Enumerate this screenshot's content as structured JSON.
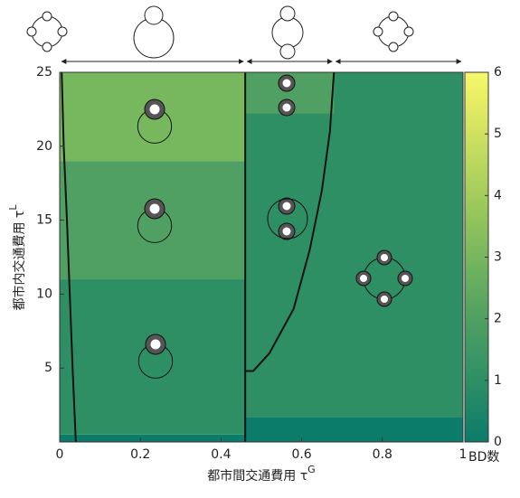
{
  "chart_data": {
    "type": "heatmap",
    "xlabel": "都市間交通費用 τ",
    "xlabel_sup": "G",
    "ylabel": "都市内交通費用 τ",
    "ylabel_sup": "L",
    "colorbar_label": "BD数",
    "xlim": [
      0,
      1
    ],
    "ylim": [
      0,
      25
    ],
    "xticks": [
      0,
      0.2,
      0.4,
      0.6,
      0.8,
      1
    ],
    "yticks": [
      5,
      10,
      15,
      20,
      25
    ],
    "clim": [
      0,
      6
    ],
    "cticks": [
      0,
      1,
      2,
      3,
      4,
      5,
      6
    ],
    "colormap": [
      "#0b7b6a",
      "#2e8f65",
      "#4fa062",
      "#77b75d",
      "#a3cc5c",
      "#d0e160",
      "#f8f86a"
    ],
    "regions": [
      {
        "x": [
          0,
          0.46
        ],
        "y": [
          0,
          0.5
        ],
        "value": 0
      },
      {
        "x": [
          0,
          0.46
        ],
        "y": [
          0.5,
          11
        ],
        "value": 1
      },
      {
        "x": [
          0,
          0.46
        ],
        "y": [
          11,
          19
        ],
        "value": 2
      },
      {
        "x": [
          0,
          0.46
        ],
        "y": [
          19,
          25
        ],
        "value": 3
      },
      {
        "x": [
          0.46,
          1
        ],
        "y": [
          0,
          1.7
        ],
        "value": 0
      },
      {
        "x": [
          0.46,
          1
        ],
        "y": [
          1.7,
          25
        ],
        "value": 1
      },
      {
        "x": [
          0.46,
          0.68
        ],
        "y": [
          22.2,
          25
        ],
        "value": 2
      }
    ],
    "boundaries": [
      {
        "x": [
          0.005,
          0.01,
          0.018,
          0.025,
          0.032,
          0.04
        ],
        "y": [
          25,
          20,
          15,
          10,
          5,
          0
        ]
      },
      {
        "x": [
          0.46,
          0.46
        ],
        "y": [
          0,
          25
        ]
      },
      {
        "x": [
          0.46,
          0.48,
          0.52,
          0.58,
          0.62,
          0.65,
          0.67,
          0.68
        ],
        "y": [
          4.8,
          4.8,
          6,
          9,
          13,
          17,
          21,
          25
        ]
      }
    ],
    "phase_bounds": [
      0,
      0.46,
      0.68,
      1
    ]
  }
}
